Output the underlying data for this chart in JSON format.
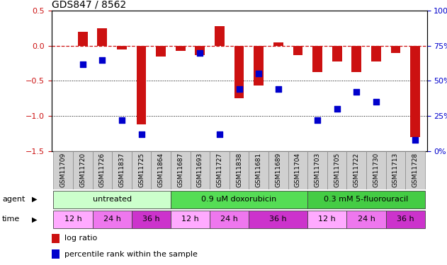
{
  "title": "GDS847 / 8562",
  "samples": [
    "GSM11709",
    "GSM11720",
    "GSM11726",
    "GSM11837",
    "GSM11725",
    "GSM11864",
    "GSM11687",
    "GSM11693",
    "GSM11727",
    "GSM11838",
    "GSM11681",
    "GSM11689",
    "GSM11704",
    "GSM11703",
    "GSM11705",
    "GSM11722",
    "GSM11730",
    "GSM11713",
    "GSM11728"
  ],
  "log_ratio": [
    0.0,
    0.2,
    0.25,
    -0.05,
    -1.12,
    -0.15,
    -0.07,
    -0.13,
    0.28,
    -0.75,
    -0.57,
    0.05,
    -0.13,
    -0.38,
    -0.22,
    -0.38,
    -0.22,
    -0.1,
    -1.3
  ],
  "percentile_rank": [
    null,
    62,
    65,
    22,
    12,
    null,
    null,
    70,
    12,
    44,
    55,
    44,
    null,
    22,
    30,
    42,
    35,
    null,
    8
  ],
  "agents": [
    {
      "label": "untreated",
      "start": 0,
      "end": 6,
      "color": "#ccffcc"
    },
    {
      "label": "0.9 uM doxorubicin",
      "start": 6,
      "end": 13,
      "color": "#55dd55"
    },
    {
      "label": "0.3 mM 5-fluorouracil",
      "start": 13,
      "end": 19,
      "color": "#44cc44"
    }
  ],
  "time_groups": [
    {
      "label": "12 h",
      "start": 0,
      "end": 2,
      "color": "#ffaaff"
    },
    {
      "label": "24 h",
      "start": 2,
      "end": 4,
      "color": "#ee77ee"
    },
    {
      "label": "36 h",
      "start": 4,
      "end": 6,
      "color": "#cc33cc"
    },
    {
      "label": "12 h",
      "start": 6,
      "end": 8,
      "color": "#ffaaff"
    },
    {
      "label": "24 h",
      "start": 8,
      "end": 10,
      "color": "#ee77ee"
    },
    {
      "label": "36 h",
      "start": 10,
      "end": 13,
      "color": "#cc33cc"
    },
    {
      "label": "12 h",
      "start": 13,
      "end": 15,
      "color": "#ffaaff"
    },
    {
      "label": "24 h",
      "start": 15,
      "end": 17,
      "color": "#ee77ee"
    },
    {
      "label": "36 h",
      "start": 17,
      "end": 19,
      "color": "#cc33cc"
    }
  ],
  "bar_color": "#cc1111",
  "dot_color": "#0000cc",
  "ylim_left": [
    -1.5,
    0.5
  ],
  "ylim_right": [
    0,
    100
  ],
  "yticks_left": [
    0.5,
    0.0,
    -0.5,
    -1.0,
    -1.5
  ],
  "yticks_right": [
    100,
    75,
    50,
    25,
    0
  ],
  "hline_y": 0,
  "hline_dotted": [
    -0.5,
    -1.0
  ],
  "bar_width": 0.5,
  "dot_size": 30
}
